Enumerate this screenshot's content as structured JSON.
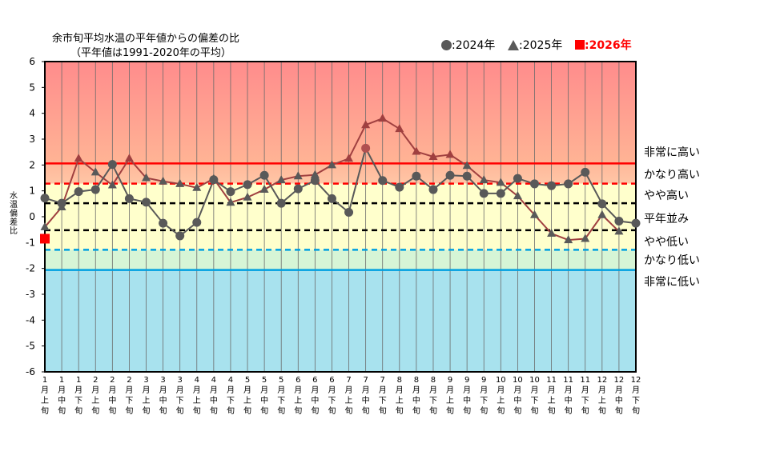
{
  "title_line1": "余市旬平均水温の平年値からの偏差の比",
  "title_line2": "（平年値は1991-2020年の平均）",
  "ylabel": "水温偏差比",
  "legend": [
    {
      "symbol": "circle",
      "label": ":2024年",
      "color": "#595959"
    },
    {
      "symbol": "triangle",
      "label": ":2025年",
      "color": "#595959"
    },
    {
      "symbol": "square",
      "label": ":2026年",
      "color": "#ff0000"
    }
  ],
  "band_labels": [
    "非常に高い",
    "かなり高い",
    "やや高い",
    "平年並み",
    "やや低い",
    "かなり低い",
    "非常に低い"
  ],
  "colors": {
    "very_high_top": "#ff8c8c",
    "very_high_bottom": "#ffb495",
    "high_top": "#ffb89a",
    "high_bottom": "#ffc6a6",
    "normal": "#ffffcc",
    "low": "#d6f5d6",
    "very_low": "#a8e2ee",
    "red_line": "#ff0000",
    "blue_line": "#00a0e0",
    "grid": "#6b6b6b",
    "line_2024": "#595959",
    "line_2025": "#a04040",
    "marker_2024_in_red": "#b05050"
  },
  "chart_data": {
    "type": "line",
    "ylim": [
      -6,
      6
    ],
    "yticks": [
      "-6",
      "-5",
      "-4",
      "-3",
      "-2",
      "-1",
      "0",
      "1",
      "2",
      "3",
      "4",
      "5",
      "6"
    ],
    "categories": [
      [
        "1",
        "月",
        "上",
        "旬"
      ],
      [
        "1",
        "月",
        "中",
        "旬"
      ],
      [
        "1",
        "月",
        "下",
        "旬"
      ],
      [
        "2",
        "月",
        "上",
        "旬"
      ],
      [
        "2",
        "月",
        "中",
        "旬"
      ],
      [
        "2",
        "月",
        "下",
        "旬"
      ],
      [
        "3",
        "月",
        "上",
        "旬"
      ],
      [
        "3",
        "月",
        "中",
        "旬"
      ],
      [
        "3",
        "月",
        "下",
        "旬"
      ],
      [
        "4",
        "月",
        "上",
        "旬"
      ],
      [
        "4",
        "月",
        "中",
        "旬"
      ],
      [
        "4",
        "月",
        "下",
        "旬"
      ],
      [
        "5",
        "月",
        "上",
        "旬"
      ],
      [
        "5",
        "月",
        "中",
        "旬"
      ],
      [
        "5",
        "月",
        "下",
        "旬"
      ],
      [
        "6",
        "月",
        "上",
        "旬"
      ],
      [
        "6",
        "月",
        "中",
        "旬"
      ],
      [
        "6",
        "月",
        "下",
        "旬"
      ],
      [
        "7",
        "月",
        "上",
        "旬"
      ],
      [
        "7",
        "月",
        "中",
        "旬"
      ],
      [
        "7",
        "月",
        "下",
        "旬"
      ],
      [
        "8",
        "月",
        "上",
        "旬"
      ],
      [
        "8",
        "月",
        "中",
        "旬"
      ],
      [
        "8",
        "月",
        "下",
        "旬"
      ],
      [
        "9",
        "月",
        "上",
        "旬"
      ],
      [
        "9",
        "月",
        "中",
        "旬"
      ],
      [
        "9",
        "月",
        "下",
        "旬"
      ],
      [
        "10",
        "月",
        "上",
        "旬"
      ],
      [
        "10",
        "月",
        "中",
        "旬"
      ],
      [
        "10",
        "月",
        "下",
        "旬"
      ],
      [
        "11",
        "月",
        "上",
        "旬"
      ],
      [
        "11",
        "月",
        "中",
        "旬"
      ],
      [
        "11",
        "月",
        "下",
        "旬"
      ],
      [
        "12",
        "月",
        "上",
        "旬"
      ],
      [
        "12",
        "月",
        "中",
        "旬"
      ],
      [
        "12",
        "月",
        "下",
        "旬"
      ]
    ],
    "thresholds": {
      "very_high": 2.06,
      "high": 1.28,
      "normal_upper": 0.52,
      "normal_lower": -0.52,
      "low": -1.28,
      "very_low": -2.06
    },
    "series": [
      {
        "name": "2024年",
        "marker": "circle",
        "values": [
          0.72,
          0.52,
          0.97,
          1.05,
          2.02,
          0.7,
          0.56,
          -0.25,
          -0.74,
          -0.22,
          1.43,
          0.97,
          1.24,
          1.6,
          0.52,
          1.08,
          1.4,
          0.7,
          0.17,
          2.65,
          1.4,
          1.14,
          1.57,
          1.05,
          1.6,
          1.57,
          0.9,
          0.9,
          1.48,
          1.27,
          1.2,
          1.27,
          1.72,
          0.5,
          -0.17,
          -0.25
        ]
      },
      {
        "name": "2025年",
        "marker": "triangle",
        "values": [
          -0.4,
          0.37,
          2.25,
          1.72,
          1.22,
          2.25,
          1.5,
          1.37,
          1.27,
          1.12,
          1.47,
          0.55,
          0.75,
          1.05,
          1.42,
          1.57,
          1.62,
          2.0,
          2.25,
          3.55,
          3.8,
          3.4,
          2.52,
          2.32,
          2.4,
          1.97,
          1.42,
          1.32,
          0.8,
          0.07,
          -0.65,
          -0.9,
          -0.85,
          0.07,
          -0.57,
          null
        ]
      },
      {
        "name": "2026年",
        "marker": "square",
        "values": [
          -0.85,
          null,
          null,
          null,
          null,
          null,
          null,
          null,
          null,
          null,
          null,
          null,
          null,
          null,
          null,
          null,
          null,
          null,
          null,
          null,
          null,
          null,
          null,
          null,
          null,
          null,
          null,
          null,
          null,
          null,
          null,
          null,
          null,
          null,
          null,
          null
        ]
      }
    ]
  }
}
